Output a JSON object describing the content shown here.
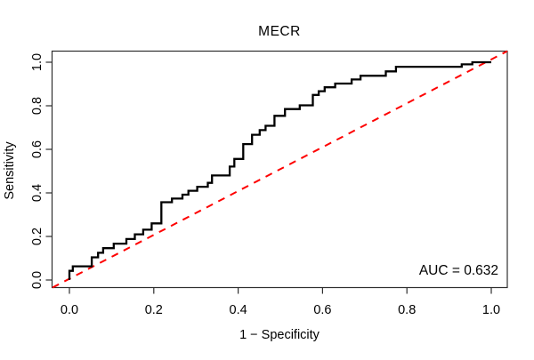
{
  "title": "MECR",
  "annotation": {
    "auc_label": "AUC = 0.632"
  },
  "colors": {
    "curve": "#000000",
    "reference_line": "#fe0000",
    "box": "#2e2e2e",
    "text": "#000000",
    "background": "#ffffff"
  },
  "chart_data": {
    "type": "line",
    "subtype": "roc-step-curve",
    "title": "MECR",
    "xlabel": "1 − Specificity",
    "ylabel": "Sensitivity",
    "xlim": [
      -0.04,
      1.04
    ],
    "ylim": [
      -0.04,
      1.04
    ],
    "x_ticks": [
      {
        "value": 0.0,
        "label": "0.0"
      },
      {
        "value": 0.2,
        "label": "0.2"
      },
      {
        "value": 0.4,
        "label": "0.4"
      },
      {
        "value": 0.6,
        "label": "0.6"
      },
      {
        "value": 0.8,
        "label": "0.8"
      },
      {
        "value": 1.0,
        "label": "1.0"
      }
    ],
    "y_ticks": [
      {
        "value": 0.0,
        "label": "0.0"
      },
      {
        "value": 0.2,
        "label": "0.2"
      },
      {
        "value": 0.4,
        "label": "0.4"
      },
      {
        "value": 0.6,
        "label": "0.6"
      },
      {
        "value": 0.8,
        "label": "0.8"
      },
      {
        "value": 1.0,
        "label": "1.0"
      }
    ],
    "grid": false,
    "legend": "none",
    "auc": 0.632,
    "series": [
      {
        "name": "ROC curve",
        "style": "solid-step",
        "color": "#000000",
        "line_width": 2.3,
        "points": [
          [
            0.0,
            0.0
          ],
          [
            0.0,
            0.042
          ],
          [
            0.008,
            0.042
          ],
          [
            0.008,
            0.063
          ],
          [
            0.053,
            0.063
          ],
          [
            0.053,
            0.104
          ],
          [
            0.068,
            0.104
          ],
          [
            0.068,
            0.125
          ],
          [
            0.08,
            0.125
          ],
          [
            0.08,
            0.146
          ],
          [
            0.105,
            0.146
          ],
          [
            0.105,
            0.167
          ],
          [
            0.135,
            0.167
          ],
          [
            0.135,
            0.188
          ],
          [
            0.155,
            0.188
          ],
          [
            0.155,
            0.21
          ],
          [
            0.175,
            0.21
          ],
          [
            0.175,
            0.231
          ],
          [
            0.195,
            0.231
          ],
          [
            0.195,
            0.26
          ],
          [
            0.218,
            0.26
          ],
          [
            0.218,
            0.357
          ],
          [
            0.243,
            0.357
          ],
          [
            0.243,
            0.374
          ],
          [
            0.268,
            0.374
          ],
          [
            0.268,
            0.392
          ],
          [
            0.282,
            0.392
          ],
          [
            0.282,
            0.41
          ],
          [
            0.303,
            0.41
          ],
          [
            0.303,
            0.428
          ],
          [
            0.328,
            0.428
          ],
          [
            0.328,
            0.446
          ],
          [
            0.338,
            0.446
          ],
          [
            0.338,
            0.48
          ],
          [
            0.38,
            0.48
          ],
          [
            0.38,
            0.521
          ],
          [
            0.391,
            0.521
          ],
          [
            0.391,
            0.556
          ],
          [
            0.412,
            0.556
          ],
          [
            0.412,
            0.624
          ],
          [
            0.433,
            0.624
          ],
          [
            0.433,
            0.667
          ],
          [
            0.451,
            0.667
          ],
          [
            0.451,
            0.688
          ],
          [
            0.465,
            0.688
          ],
          [
            0.465,
            0.708
          ],
          [
            0.486,
            0.708
          ],
          [
            0.486,
            0.754
          ],
          [
            0.511,
            0.754
          ],
          [
            0.511,
            0.785
          ],
          [
            0.546,
            0.785
          ],
          [
            0.546,
            0.802
          ],
          [
            0.577,
            0.802
          ],
          [
            0.577,
            0.85
          ],
          [
            0.591,
            0.85
          ],
          [
            0.591,
            0.867
          ],
          [
            0.605,
            0.867
          ],
          [
            0.605,
            0.885
          ],
          [
            0.63,
            0.885
          ],
          [
            0.63,
            0.902
          ],
          [
            0.669,
            0.902
          ],
          [
            0.669,
            0.921
          ],
          [
            0.69,
            0.921
          ],
          [
            0.69,
            0.938
          ],
          [
            0.75,
            0.938
          ],
          [
            0.75,
            0.958
          ],
          [
            0.774,
            0.958
          ],
          [
            0.774,
            0.979
          ],
          [
            0.93,
            0.979
          ],
          [
            0.93,
            0.99
          ],
          [
            0.955,
            0.99
          ],
          [
            0.955,
            1.0
          ],
          [
            1.0,
            1.0
          ]
        ]
      },
      {
        "name": "chance diagonal",
        "style": "dashed-line",
        "color": "#fe0000",
        "line_width": 2,
        "dash": [
          8,
          7
        ],
        "points": [
          [
            -0.04,
            -0.04
          ],
          [
            1.04,
            1.04
          ]
        ]
      }
    ]
  }
}
